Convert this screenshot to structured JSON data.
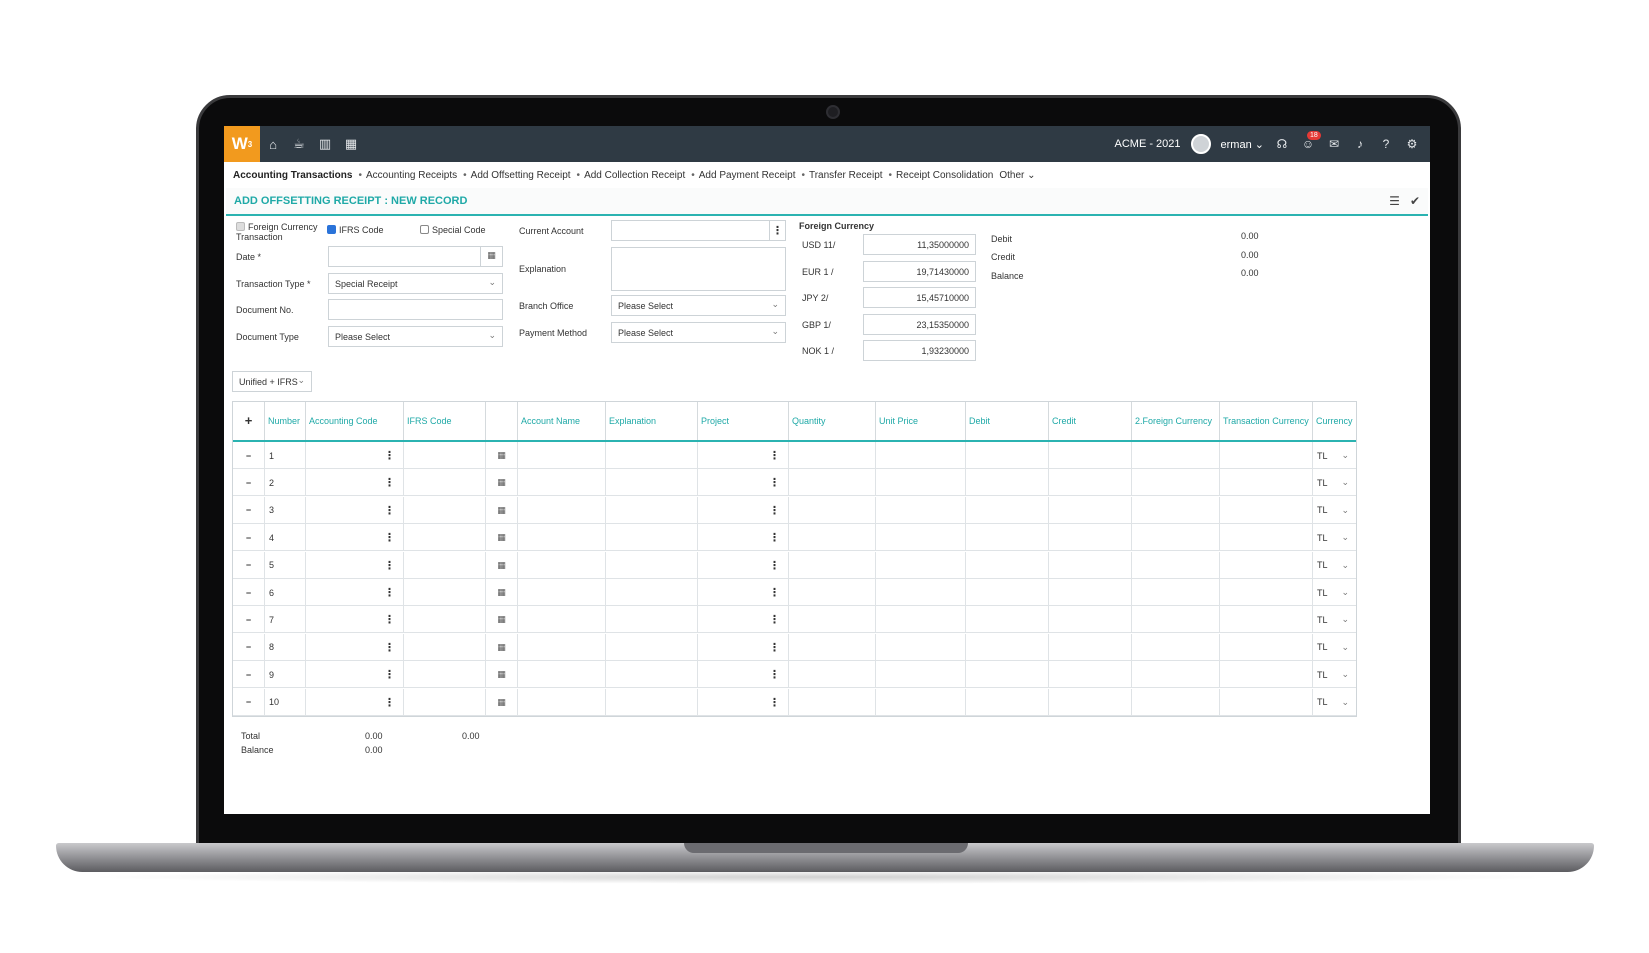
{
  "app": {
    "logo": "W",
    "logo_sup": "3",
    "company": "ACME - 2021",
    "user": "erman",
    "notif_count": "18"
  },
  "subnav": [
    "Accounting Transactions",
    "Accounting Receipts",
    "Add Offsetting Receipt",
    "Add Collection Receipt",
    "Add Payment Receipt",
    "Transfer Receipt",
    "Receipt Consolidation",
    "Other"
  ],
  "page": {
    "title": "ADD OFFSETTING RECEIPT : NEW RECORD"
  },
  "form": {
    "fc_transaction": "Foreign Currency Transaction",
    "ifrs_code": "IFRS Code",
    "special_code": "Special Code",
    "date_label": "Date *",
    "transaction_type_label": "Transaction Type *",
    "transaction_type_value": "Special Receipt",
    "document_no_label": "Document No.",
    "document_type_label": "Document Type",
    "document_type_value": "Please Select",
    "current_account_label": "Current Account",
    "explanation_label": "Explanation",
    "branch_office_label": "Branch Office",
    "branch_office_value": "Please Select",
    "payment_method_label": "Payment Method",
    "payment_method_value": "Please Select"
  },
  "foreign_currency": {
    "title": "Foreign Currency",
    "rates": [
      {
        "label": "USD 11/",
        "value": "11,35000000"
      },
      {
        "label": "EUR 1 /",
        "value": "19,71430000"
      },
      {
        "label": "JPY 2/",
        "value": "15,45710000"
      },
      {
        "label": "GBP 1/",
        "value": "23,15350000"
      },
      {
        "label": "NOK 1 /",
        "value": "1,93230000"
      }
    ]
  },
  "summary": [
    {
      "label": "Debit",
      "value": "0.00"
    },
    {
      "label": "Credit",
      "value": "0.00"
    },
    {
      "label": "Balance",
      "value": "0.00"
    }
  ],
  "view_select": "Unified + IFRS",
  "grid": {
    "headers": [
      "Number",
      "Accounting Code",
      "IFRS Code",
      "",
      "Account Name",
      "Explanation",
      "Project",
      "Quantity",
      "Unit Price",
      "Debit",
      "Credit",
      "2.Foreign Currency",
      "Transaction Currency",
      "Currency"
    ],
    "rows": [
      "1",
      "2",
      "3",
      "4",
      "5",
      "6",
      "7",
      "8",
      "9",
      "10"
    ],
    "currency": "TL"
  },
  "footer": {
    "total_label": "Total",
    "balance_label": "Balance",
    "total_debit": "0.00",
    "total_credit": "0.00",
    "balance_value": "0.00"
  }
}
